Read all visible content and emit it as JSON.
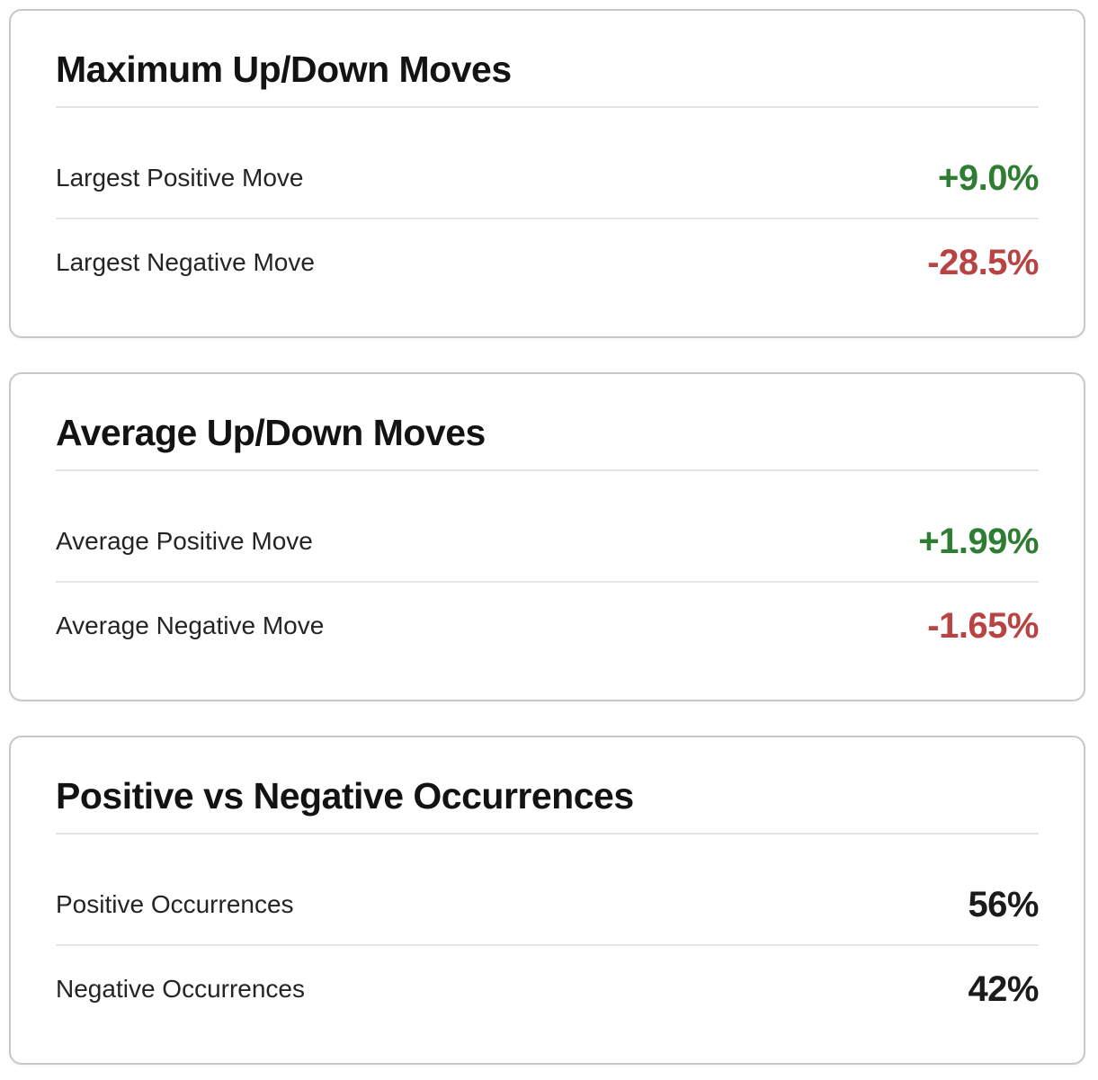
{
  "value_colors": {
    "positive": "#2e7d32",
    "negative": "#b94343",
    "neutral": "#1b1b1b"
  },
  "cards": [
    {
      "title": "Maximum Up/Down Moves",
      "rows": [
        {
          "label": "Largest Positive Move",
          "value": "+9.0%",
          "sentiment": "positive"
        },
        {
          "label": "Largest Negative Move",
          "value": "-28.5%",
          "sentiment": "negative"
        }
      ]
    },
    {
      "title": "Average Up/Down Moves",
      "rows": [
        {
          "label": "Average Positive Move",
          "value": "+1.99%",
          "sentiment": "positive"
        },
        {
          "label": "Average Negative Move",
          "value": "-1.65%",
          "sentiment": "negative"
        }
      ]
    },
    {
      "title": "Positive vs Negative Occurrences",
      "rows": [
        {
          "label": "Positive Occurrences",
          "value": "56%",
          "sentiment": "neutral"
        },
        {
          "label": "Negative Occurrences",
          "value": "42%",
          "sentiment": "neutral"
        }
      ]
    }
  ]
}
